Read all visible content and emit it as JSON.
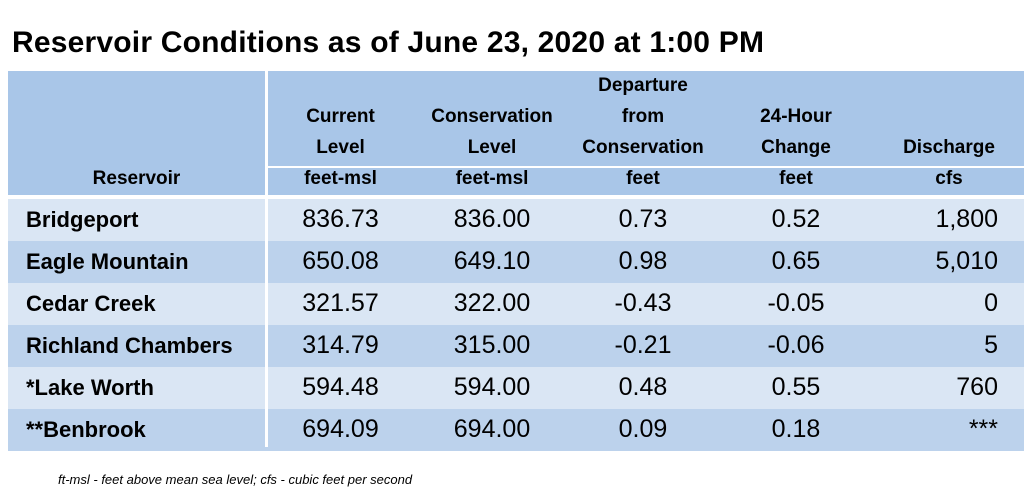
{
  "title": "Reservoir Conditions as of June 23, 2020 at 1:00 PM",
  "header": {
    "reservoir": "Reservoir",
    "current_level": [
      "Current",
      "Level"
    ],
    "current_level_unit": "feet-msl",
    "conservation_level": [
      "Conservation",
      "Level"
    ],
    "conservation_level_unit": "feet-msl",
    "departure": [
      "Departure",
      "from",
      "Conservation"
    ],
    "departure_unit": "feet",
    "change": [
      "24-Hour",
      "Change"
    ],
    "change_unit": "feet",
    "discharge": "Discharge",
    "discharge_unit": "cfs"
  },
  "rows": [
    {
      "name": "Bridgeport",
      "current": "836.73",
      "conservation": "836.00",
      "departure": "0.73",
      "change": "0.52",
      "discharge": "1,800"
    },
    {
      "name": "Eagle Mountain",
      "current": "650.08",
      "conservation": "649.10",
      "departure": "0.98",
      "change": "0.65",
      "discharge": "5,010"
    },
    {
      "name": "Cedar Creek",
      "current": "321.57",
      "conservation": "322.00",
      "departure": "-0.43",
      "change": "-0.05",
      "discharge": "0"
    },
    {
      "name": "Richland Chambers",
      "current": "314.79",
      "conservation": "315.00",
      "departure": "-0.21",
      "change": "-0.06",
      "discharge": "5"
    },
    {
      "name": "*Lake Worth",
      "current": "594.48",
      "conservation": "594.00",
      "departure": "0.48",
      "change": "0.55",
      "discharge": "760"
    },
    {
      "name": "**Benbrook",
      "current": "694.09",
      "conservation": "694.00",
      "departure": "0.09",
      "change": "0.18",
      "discharge": "***"
    }
  ],
  "footnote": "ft-msl - feet above mean sea level; cfs - cubic feet per second",
  "colors": {
    "header_bg": "#a9c6e8",
    "row_light": "#dae6f4",
    "row_dark": "#bcd2ec",
    "separator": "#ffffff"
  }
}
